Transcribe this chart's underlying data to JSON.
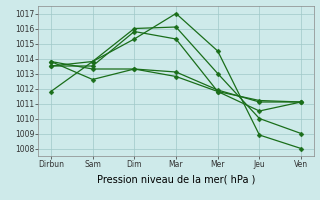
{
  "background_color": "#ceeaea",
  "grid_color": "#a0c8c8",
  "line_color": "#1a6e1a",
  "marker_color": "#1a6e1a",
  "xlabel": "Pression niveau de la mer( hPa )",
  "xlabel_fontsize": 7,
  "yticks": [
    1008,
    1009,
    1010,
    1011,
    1012,
    1013,
    1014,
    1015,
    1016,
    1017
  ],
  "ylim": [
    1007.5,
    1017.5
  ],
  "xtick_labels": [
    "Dirbun",
    "Sam",
    "Dim",
    "Mar",
    "Mer",
    "Jeu",
    "Ven"
  ],
  "xtick_positions": [
    0,
    1,
    2,
    3,
    4,
    5,
    6
  ],
  "series": [
    [
      1011.8,
      1013.8,
      1015.3,
      1017.0,
      1014.5,
      1008.9,
      1008.0
    ],
    [
      1013.5,
      1013.8,
      1016.0,
      1016.1,
      1013.0,
      1010.0,
      1009.0
    ],
    [
      1013.5,
      1013.5,
      1015.8,
      1015.3,
      1011.8,
      1010.5,
      1011.1
    ],
    [
      1013.8,
      1013.3,
      1013.3,
      1013.1,
      1011.9,
      1011.1,
      1011.1
    ],
    [
      1013.8,
      1012.6,
      1013.3,
      1012.8,
      1011.8,
      1011.2,
      1011.1
    ]
  ],
  "marker_size": 2.5,
  "line_width": 0.9,
  "tick_fontsize": 5.5,
  "figsize": [
    3.2,
    2.0
  ],
  "dpi": 100
}
